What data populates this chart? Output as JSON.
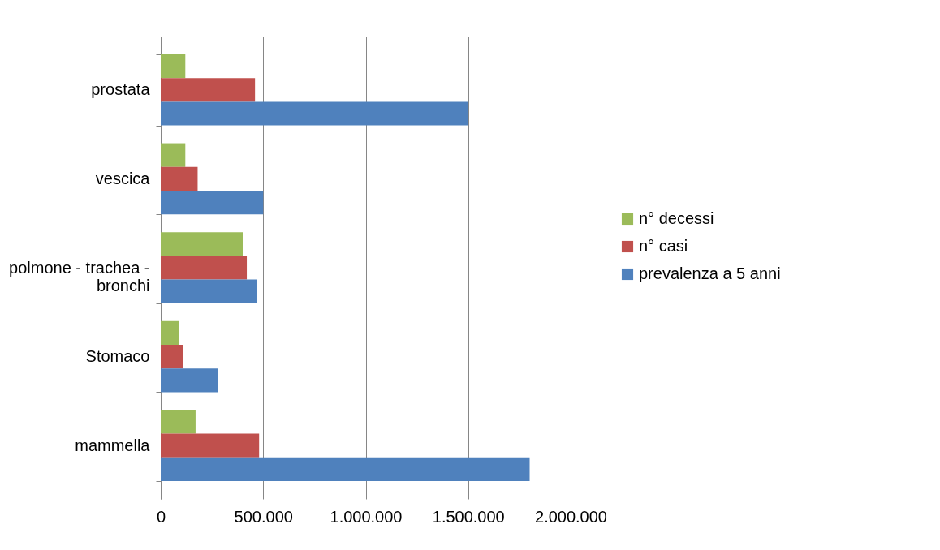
{
  "chart_data": {
    "type": "bar",
    "orientation": "horizontal",
    "categories": [
      "prostata",
      "vescica",
      "polmone - trachea - bronchi",
      "Stomaco",
      "mammella"
    ],
    "series": [
      {
        "name": "n° decessi",
        "color": "#9bbb59",
        "values": [
          120000,
          120000,
          400000,
          90000,
          170000
        ]
      },
      {
        "name": "n° casi",
        "color": "#c0504d",
        "values": [
          460000,
          180000,
          420000,
          110000,
          480000
        ]
      },
      {
        "name": "prevalenza a 5 anni",
        "color": "#4f81bd",
        "values": [
          1500000,
          500000,
          470000,
          280000,
          1800000
        ]
      }
    ],
    "xlim": [
      0,
      2000000
    ],
    "xticks": [
      0,
      {
        "value": 500000,
        "label": "500.000"
      },
      {
        "value": 1000000,
        "label": "1.000.000"
      },
      {
        "value": 1500000,
        "label": "1.500.000"
      },
      {
        "value": 2000000,
        "label": "2.000.000"
      }
    ],
    "grid": "x",
    "legend": "right"
  }
}
